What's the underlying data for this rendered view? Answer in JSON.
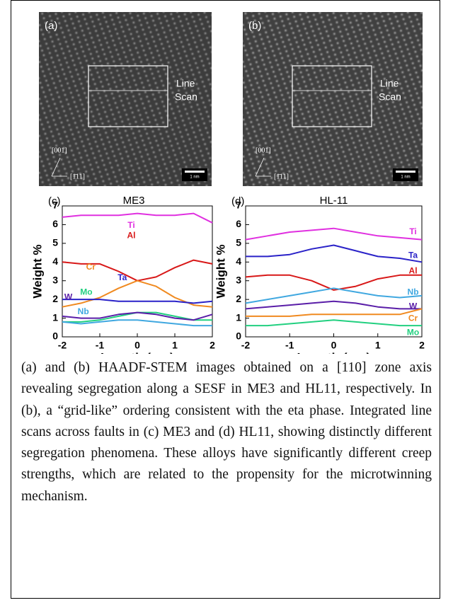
{
  "images": [
    {
      "label": "(a)",
      "annotation": [
        "Line",
        "Scan"
      ],
      "axis_labels": [
        "[001]",
        "[1̄11]"
      ],
      "scale_bar": "1 nm"
    },
    {
      "label": "(b)",
      "annotation": [
        "Line",
        "Scan"
      ],
      "axis_labels": [
        "[001]",
        "[1̄11]"
      ],
      "scale_bar": "1 nm"
    }
  ],
  "chart_data": [
    {
      "type": "line",
      "panel": "(c)",
      "title": "ME3",
      "x_label": "Length (nm)",
      "y_label": "Weight %",
      "x": [
        -2,
        -1.5,
        -1,
        -0.5,
        0,
        0.5,
        1,
        1.5,
        2
      ],
      "xlim": [
        -2,
        2
      ],
      "ylim": [
        0,
        7
      ],
      "xticks": [
        -2,
        -1,
        0,
        1,
        2
      ],
      "yticks": [
        0,
        1,
        2,
        3,
        4,
        5,
        6,
        7
      ],
      "series": [
        {
          "name": "Ti",
          "color": "#e030e0",
          "values": [
            6.4,
            6.5,
            6.5,
            6.5,
            6.6,
            6.5,
            6.5,
            6.6,
            6.1
          ]
        },
        {
          "name": "Al",
          "color": "#d81818",
          "values": [
            4.0,
            3.9,
            3.9,
            3.5,
            3.0,
            3.2,
            3.7,
            4.1,
            3.9
          ]
        },
        {
          "name": "Cr",
          "color": "#f08a20",
          "values": [
            1.6,
            1.8,
            2.1,
            2.6,
            3.0,
            2.7,
            2.1,
            1.7,
            1.6
          ]
        },
        {
          "name": "Ta",
          "color": "#2a22c8",
          "values": [
            2.0,
            2.0,
            2.0,
            1.9,
            1.9,
            1.9,
            1.9,
            1.8,
            1.9
          ]
        },
        {
          "name": "Mo",
          "color": "#22d080",
          "values": [
            0.8,
            0.8,
            0.9,
            1.1,
            1.3,
            1.3,
            1.1,
            0.9,
            0.9
          ]
        },
        {
          "name": "W",
          "color": "#5a1ea8",
          "values": [
            1.1,
            1.0,
            1.0,
            1.2,
            1.3,
            1.2,
            1.0,
            0.9,
            1.2
          ]
        },
        {
          "name": "Nb",
          "color": "#40a8e0",
          "values": [
            0.8,
            0.7,
            0.8,
            0.9,
            0.9,
            0.8,
            0.7,
            0.6,
            0.6
          ]
        }
      ]
    },
    {
      "type": "line",
      "panel": "(d)",
      "title": "HL-11",
      "x_label": "Length (nm)",
      "y_label": "Weight %",
      "x": [
        -2,
        -1.5,
        -1,
        -0.5,
        0,
        0.5,
        1,
        1.5,
        2
      ],
      "xlim": [
        -2,
        2
      ],
      "ylim": [
        0,
        7
      ],
      "xticks": [
        -2,
        -1,
        0,
        1,
        2
      ],
      "yticks": [
        0,
        1,
        2,
        3,
        4,
        5,
        6,
        7
      ],
      "series": [
        {
          "name": "Ti",
          "color": "#e030e0",
          "values": [
            5.2,
            5.4,
            5.6,
            5.7,
            5.8,
            5.6,
            5.4,
            5.3,
            5.2
          ]
        },
        {
          "name": "Ta",
          "color": "#2a22c8",
          "values": [
            4.3,
            4.3,
            4.4,
            4.7,
            4.9,
            4.6,
            4.3,
            4.2,
            4.0
          ]
        },
        {
          "name": "Al",
          "color": "#d81818",
          "values": [
            3.2,
            3.3,
            3.3,
            3.0,
            2.5,
            2.7,
            3.1,
            3.3,
            3.3
          ]
        },
        {
          "name": "Nb",
          "color": "#40a8e0",
          "values": [
            1.8,
            2.0,
            2.2,
            2.4,
            2.6,
            2.4,
            2.2,
            2.1,
            2.2
          ]
        },
        {
          "name": "W",
          "color": "#5a1ea8",
          "values": [
            1.5,
            1.6,
            1.7,
            1.8,
            1.9,
            1.8,
            1.6,
            1.5,
            1.5
          ]
        },
        {
          "name": "Cr",
          "color": "#f08a20",
          "values": [
            1.1,
            1.1,
            1.1,
            1.2,
            1.2,
            1.2,
            1.2,
            1.2,
            1.5
          ]
        },
        {
          "name": "Mo",
          "color": "#22d080",
          "values": [
            0.6,
            0.6,
            0.7,
            0.8,
            0.9,
            0.8,
            0.7,
            0.6,
            0.6
          ]
        }
      ]
    }
  ],
  "caption": "(a) and (b) HAADF-STEM images obtained on a [110] zone axis revealing segregation along a SESF in ME3 and HL11, respectively. In (b), a “grid-like” ordering consistent with the eta phase.  Integrated line scans across faults in (c) ME3 and (d) HL11, showing distinctly different segregation phenomena.  These alloys have significantly different creep strengths, which are related to the propensity for the microtwinning mechanism."
}
